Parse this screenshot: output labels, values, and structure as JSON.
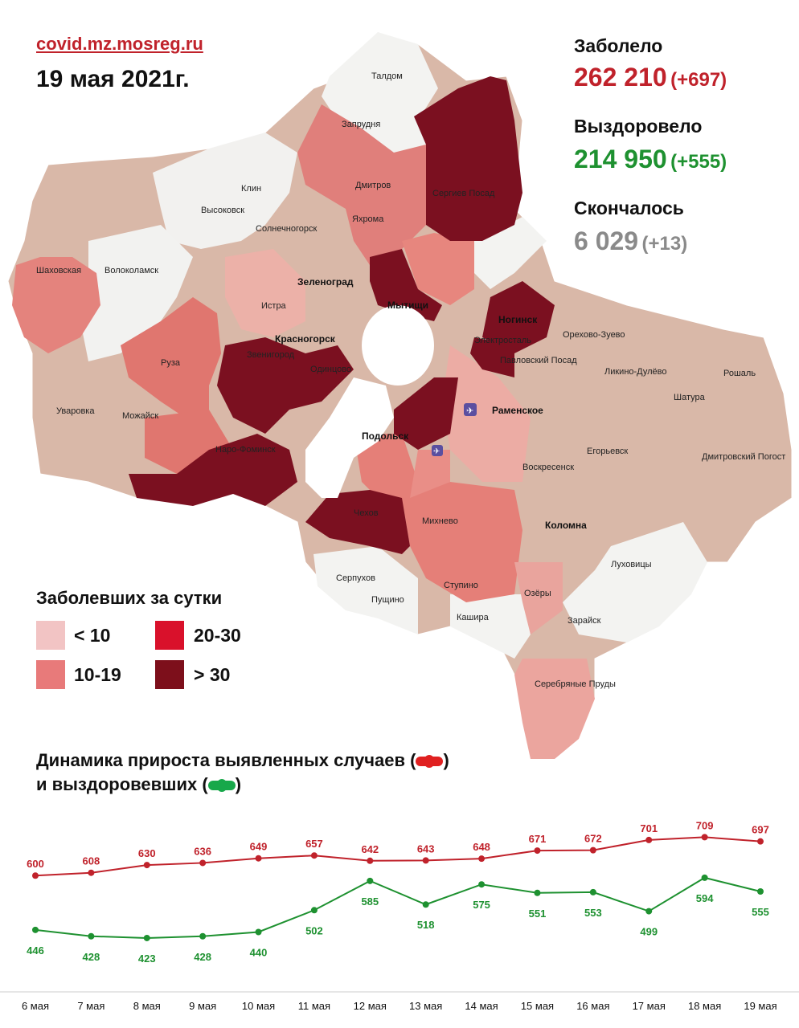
{
  "header": {
    "site": "covid.mz.mosreg.ru",
    "date": "19 мая 2021г."
  },
  "stats": {
    "infected_label": "Заболело",
    "infected_total": "262 210",
    "infected_delta": "(+697)",
    "recovered_label": "Выздоровело",
    "recovered_total": "214 950",
    "recovered_delta": "(+555)",
    "died_label": "Скончалось",
    "died_total": "6 029",
    "died_delta": "(+13)"
  },
  "legend": {
    "title": "Заболевших за сутки",
    "items": [
      {
        "label": "< 10",
        "color": "#f2c4c4"
      },
      {
        "label": "10-19",
        "color": "#e87a7a"
      },
      {
        "label": "20-30",
        "color": "#d9112b"
      },
      {
        "label": "> 30",
        "color": "#7d0f1b"
      }
    ]
  },
  "colors": {
    "under10": "#f2c4c4",
    "from10to19": "#e87a7a",
    "from20to30": "#d9112b",
    "over30": "#7d0f1b",
    "nodata": "#f4f4f2",
    "other": "#d9b3a3",
    "infected_line": "#c0222b",
    "recovered_line": "#1e9130"
  },
  "map": {
    "places": [
      "Талдом",
      "Запрудня",
      "Клин",
      "Высоковск",
      "Дмитров",
      "Яхрома",
      "Сергиев Посад",
      "Солнечногорск",
      "Волоколамск",
      "Шаховская",
      "Зеленоград",
      "Истра",
      "Мытищи",
      "Ногинск",
      "Электросталь",
      "Орехово-Зуево",
      "Красногорск",
      "Звенигород",
      "Одинцово",
      "Павловский Посад",
      "Ликино-Дулёво",
      "Рошаль",
      "Руза",
      "Шатура",
      "Уваровка",
      "Можайск",
      "Раменское",
      "Наро-Фоминск",
      "Подольск",
      "Егорьевск",
      "Дмитровский Погост",
      "Воскресенск",
      "Чехов",
      "Михнево",
      "Коломна",
      "Серпухов",
      "Луховицы",
      "Пущино",
      "Ступино",
      "Озёры",
      "Кашира",
      "Зарайск",
      "Серебряные Пруды"
    ]
  },
  "dynamics": {
    "title_line1": "Динамика прироста выявленных случаев (",
    "title_line1_end": ")",
    "title_line2": "и выздоровевших (",
    "title_line2_end": ")"
  },
  "chart_data": {
    "type": "line",
    "categories": [
      "6 мая",
      "7 мая",
      "8 мая",
      "9 мая",
      "10 мая",
      "11 мая",
      "12 мая",
      "13 мая",
      "14 мая",
      "15 мая",
      "16 мая",
      "17 мая",
      "18 мая",
      "19 мая"
    ],
    "series": [
      {
        "values": [
          600,
          608,
          630,
          636,
          649,
          657,
          642,
          643,
          648,
          671,
          672,
          701,
          709,
          697
        ],
        "color": "#c0222b"
      },
      {
        "values": [
          446,
          428,
          423,
          428,
          440,
          502,
          585,
          518,
          575,
          551,
          553,
          499,
          594,
          555
        ],
        "color": "#1e9130"
      }
    ],
    "ylim": [
      350,
      760
    ],
    "grid": false
  }
}
